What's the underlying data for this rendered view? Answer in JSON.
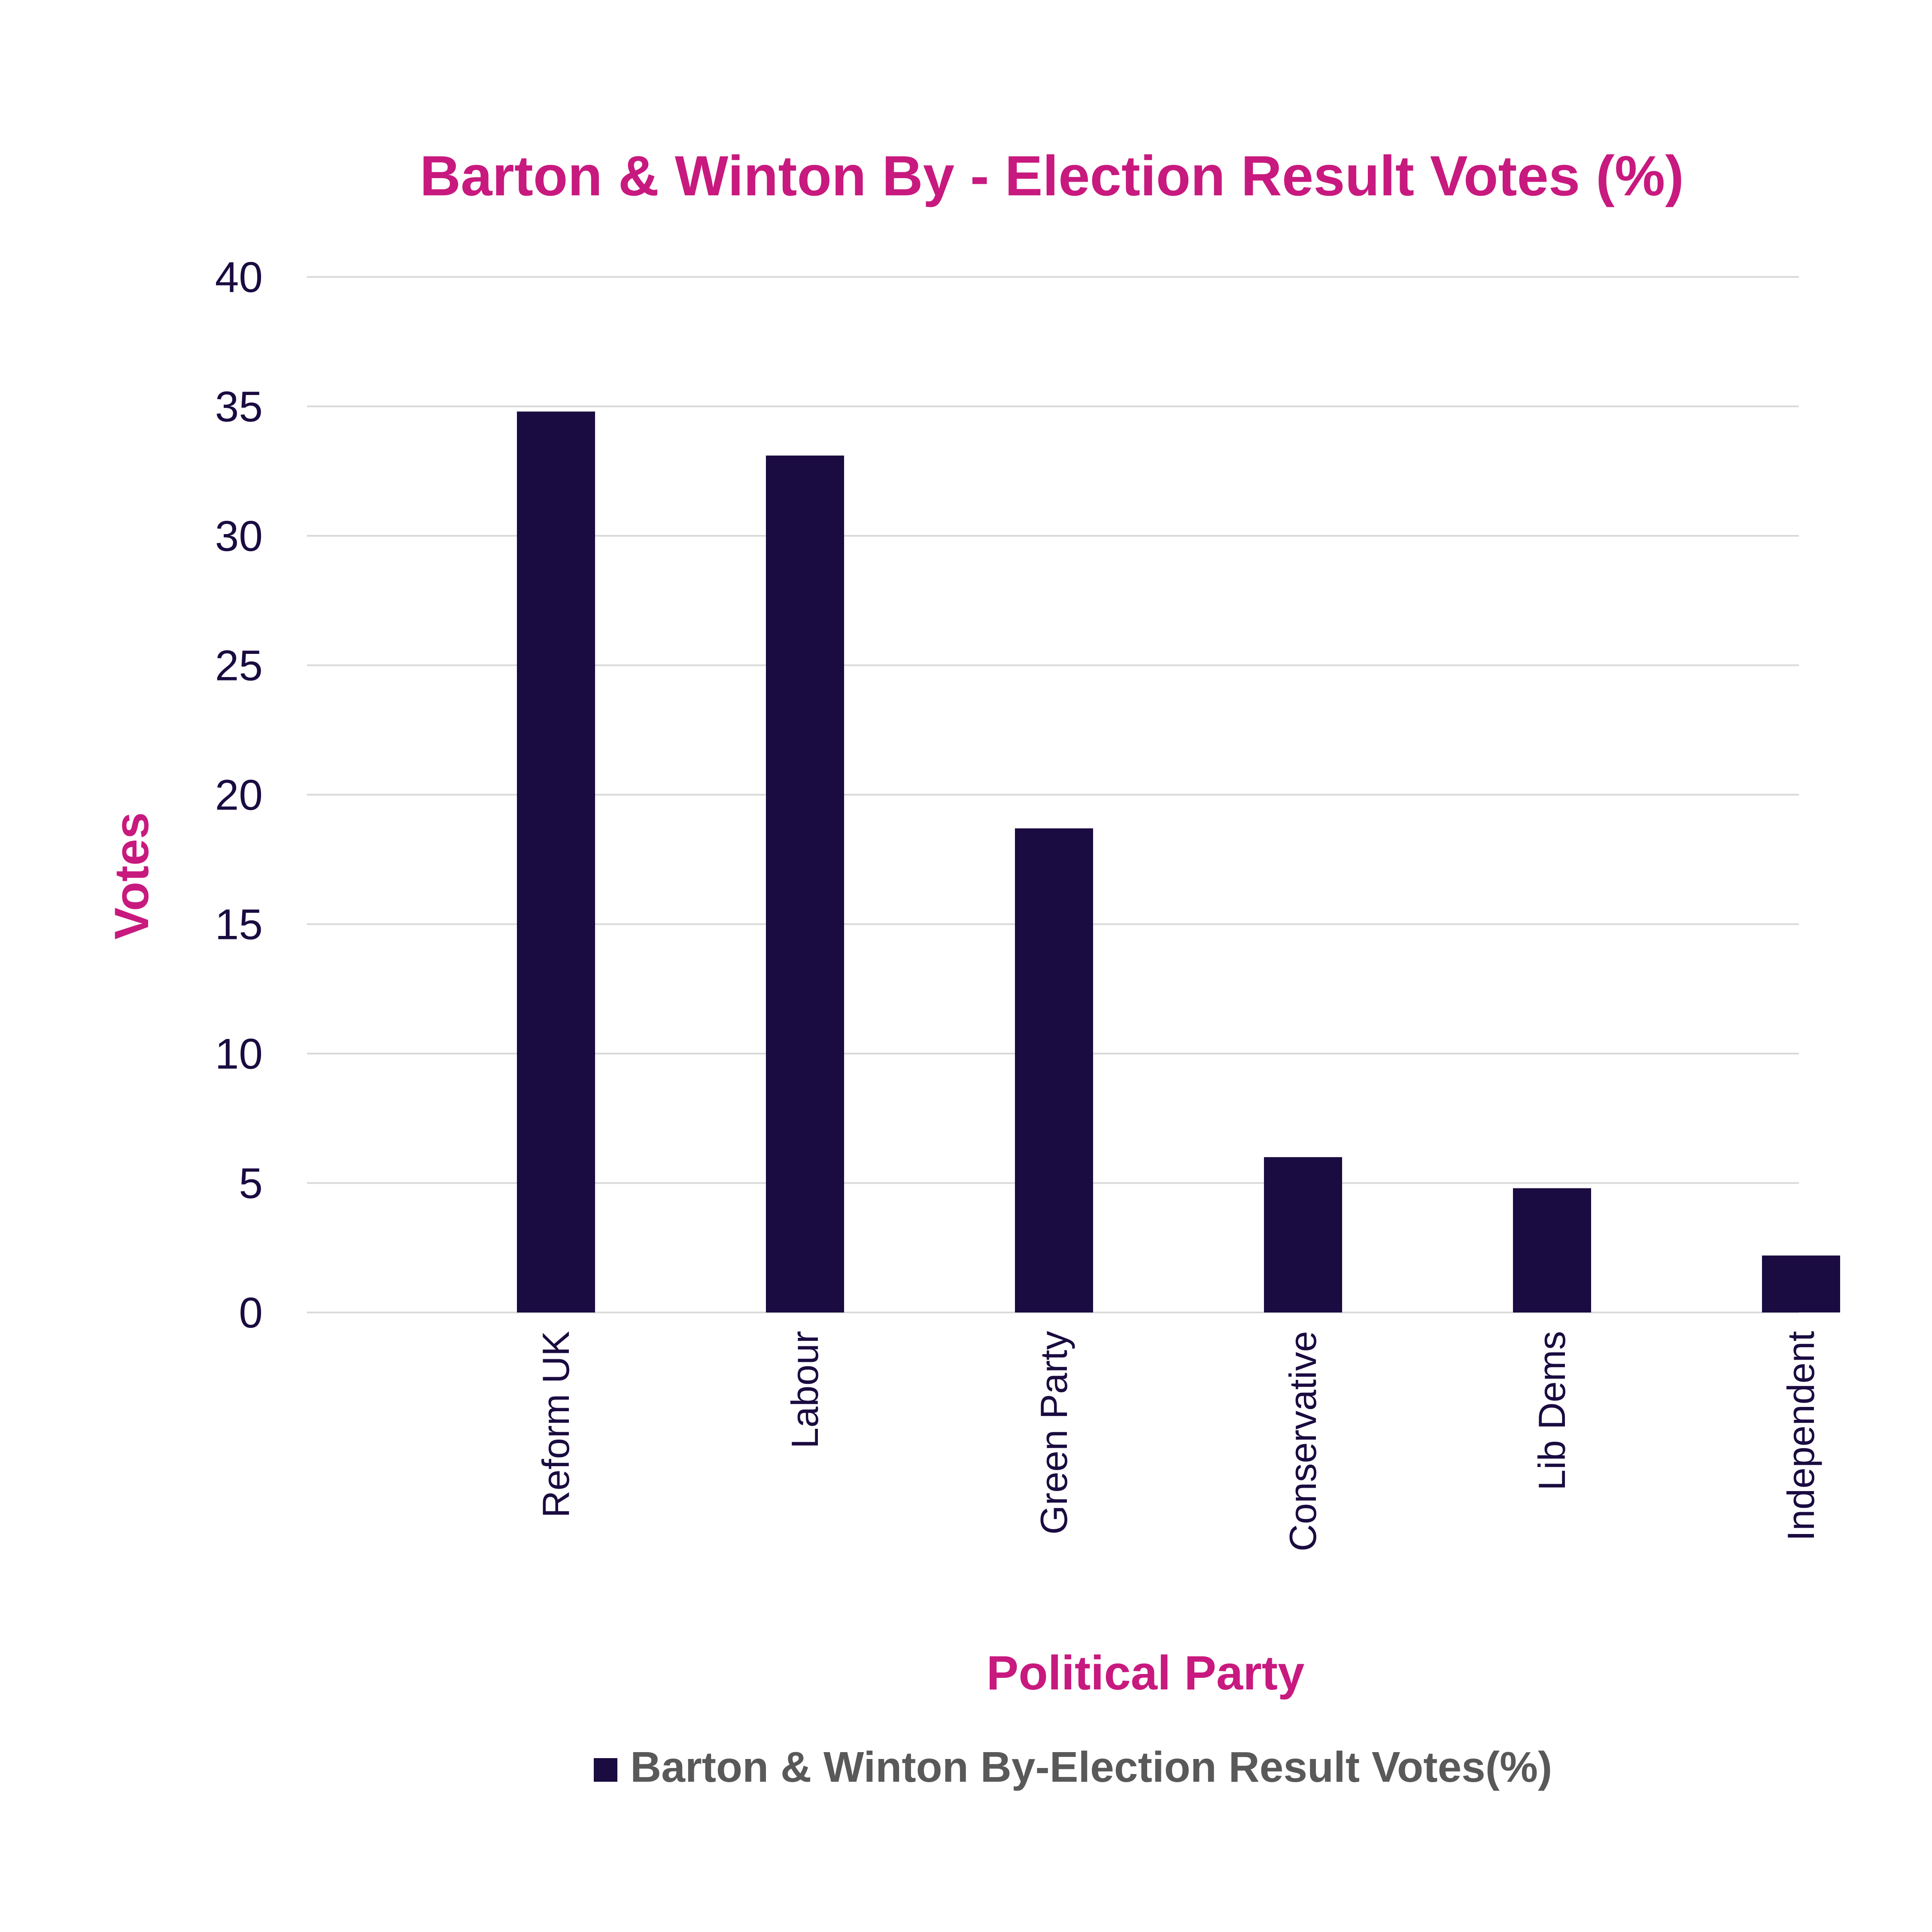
{
  "colors": {
    "accent": "#C8197F",
    "bar": "#1A0B40",
    "tick_text": "#1A0B40",
    "legend_text": "#595959",
    "gridline": "#D9D9D9",
    "background": "#FFFFFF"
  },
  "chart_data": {
    "type": "bar",
    "title": "Barton & Winton By  - Election Result Votes (%)",
    "xlabel": "Political Party",
    "ylabel": "Votes",
    "categories": [
      "Reform UK",
      "Labour",
      "Green Party",
      "Conservative",
      "Lib Dems",
      "Independent"
    ],
    "series": [
      {
        "name": "Barton & Winton By-Election Result Votes(%)",
        "values": [
          34.8,
          33.1,
          18.7,
          6.0,
          4.8,
          2.2
        ]
      }
    ],
    "ylim": [
      0,
      40
    ],
    "yticks": [
      "0",
      "5",
      "10",
      "15",
      "20",
      "25",
      "30",
      "35",
      "40"
    ],
    "grid": true,
    "legend_position": "bottom"
  }
}
